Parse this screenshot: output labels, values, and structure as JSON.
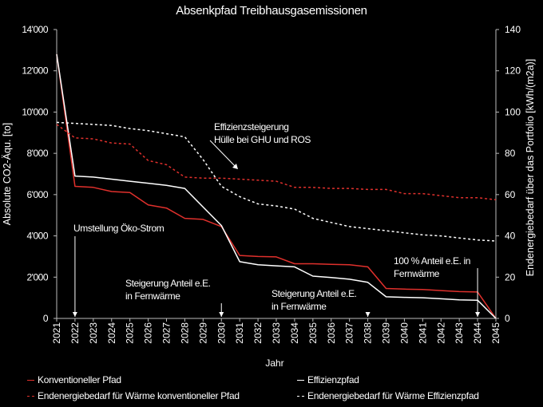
{
  "chart_data": {
    "type": "line",
    "title": "Absenkpfad Treibhausgasemissionen",
    "xlabel": "Jahr",
    "ylabel": "Absolute CO2-Äqu. [to]",
    "ylabel_right": "Endenergiebedarf über das Portfolio [kWh/(m2a)]",
    "x": [
      "2021",
      "2022",
      "2023",
      "2024",
      "2025",
      "2026",
      "2027",
      "2028",
      "2029",
      "2030",
      "2031",
      "2032",
      "2033",
      "2034",
      "2035",
      "2036",
      "2037",
      "2038",
      "2039",
      "2040",
      "2041",
      "2042",
      "2043",
      "2044",
      "2045"
    ],
    "ylim": [
      0,
      14000
    ],
    "ylim_right": [
      0,
      140
    ],
    "yticks": [
      "0",
      "2'000",
      "4'000",
      "6'000",
      "8'000",
      "10'000",
      "12'000",
      "14'000"
    ],
    "yticks_right": [
      "0",
      "20",
      "40",
      "60",
      "80",
      "100",
      "120",
      "140"
    ],
    "grid": false,
    "legend_position": "bottom",
    "series": [
      {
        "name": "Konventioneller Pfad",
        "axis": "left",
        "style": "solid",
        "color": "#e0302c",
        "values": [
          12800,
          6400,
          6350,
          6150,
          6100,
          5500,
          5350,
          4850,
          4800,
          4450,
          3050,
          3000,
          2980,
          2650,
          2650,
          2620,
          2600,
          2500,
          1450,
          1420,
          1400,
          1350,
          1300,
          1280,
          0
        ]
      },
      {
        "name": "Effizienzpfad",
        "axis": "left",
        "style": "solid",
        "color": "#ffffff",
        "values": [
          12800,
          6900,
          6850,
          6750,
          6650,
          6550,
          6450,
          6300,
          5400,
          4500,
          2750,
          2600,
          2550,
          2500,
          2050,
          1980,
          1900,
          1750,
          1050,
          1020,
          1000,
          950,
          900,
          880,
          0
        ]
      },
      {
        "name": "Endenergiebedarf für Wärme konventioneller Pfad",
        "axis": "right",
        "style": "dashed",
        "color": "#e0302c",
        "values": [
          94,
          87.5,
          87,
          85,
          84.5,
          76.5,
          74.5,
          68.5,
          68,
          68,
          67.5,
          67,
          66.5,
          63.5,
          63.5,
          63,
          63,
          62.5,
          62.5,
          60.5,
          60.5,
          59.5,
          58.5,
          58.5,
          57.5
        ]
      },
      {
        "name": "Endenergiebedarf für Wärme Effizienzpfad",
        "axis": "right",
        "style": "dashed",
        "color": "#ffffff",
        "values": [
          95,
          94.5,
          94,
          93.5,
          92,
          91,
          89.5,
          88,
          77,
          64,
          59,
          55.5,
          54.5,
          53,
          48.5,
          46.5,
          44.5,
          43.5,
          42.5,
          41.5,
          40.5,
          40,
          39,
          38,
          37.5
        ]
      }
    ],
    "annotations": [
      {
        "text": "Effizienzsteigerung\nHülle bei GHU und ROS"
      },
      {
        "text": "Umstellung Öko-Strom"
      },
      {
        "text": "Steigerung Anteil e.E.\nin Fernwärme"
      },
      {
        "text": "Steigerung Anteil e.E.\nin Fernwärme"
      },
      {
        "text": "100 % Anteil e.E. in\nFernwärme"
      }
    ]
  }
}
